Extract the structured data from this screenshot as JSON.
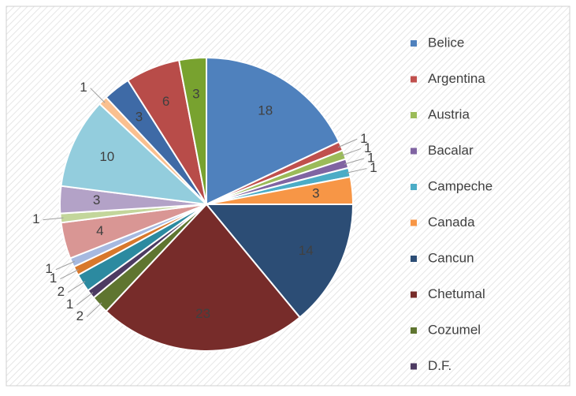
{
  "chart_data": {
    "type": "pie",
    "categories": [
      "Belice",
      "Argentina",
      "Austria",
      "Bacalar",
      "Campeche",
      "Canada",
      "Cancun",
      "Chetumal",
      "Cozumel",
      "D.F.",
      null,
      null,
      null,
      null,
      null,
      null,
      null,
      null,
      null,
      null,
      null
    ],
    "values": [
      18,
      1,
      1,
      1,
      1,
      3,
      14,
      23,
      2,
      1,
      2,
      1,
      1,
      4,
      1,
      3,
      10,
      1,
      3,
      6,
      3
    ],
    "colors": [
      "#4f81bd",
      "#c0504d",
      "#9bbb59",
      "#8064a2",
      "#4bacc6",
      "#f79646",
      "#2c4d75",
      "#772c2a",
      "#5f7530",
      "#4d3b62",
      "#2c8aa0",
      "#d8782c",
      "#a6b9e0",
      "#d99694",
      "#c3d69b",
      "#b3a2c7",
      "#93cddd",
      "#fac090",
      "#3e6aa6",
      "#b84c49",
      "#78a22f"
    ],
    "legend": "right"
  }
}
